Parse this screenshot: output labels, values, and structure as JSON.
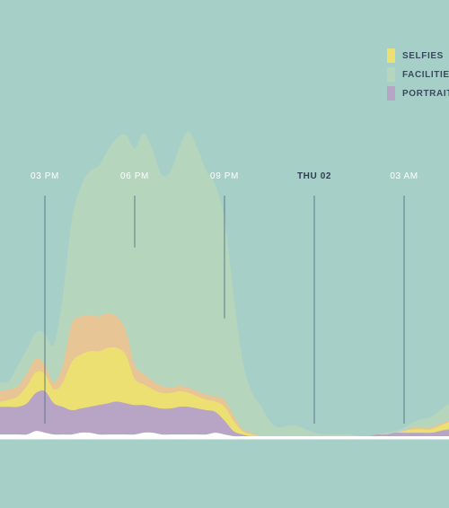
{
  "chart_data": {
    "type": "area",
    "stacked": true,
    "time_ticks": [
      "03 PM",
      "06 PM",
      "09 PM",
      "THU 02",
      "03 AM"
    ],
    "emphasized_tick": "THU 02",
    "series": [
      {
        "key": "other",
        "color": "#ffffff",
        "values": [
          1,
          1,
          1,
          1,
          3,
          2,
          1,
          1,
          1,
          2,
          2,
          1,
          1,
          1,
          1,
          1,
          2,
          2,
          1,
          1,
          1,
          1,
          1,
          1,
          2,
          1,
          0,
          0,
          0,
          0,
          0,
          0,
          0,
          0,
          0,
          0,
          0,
          0,
          0,
          0,
          0,
          0,
          0,
          0,
          0,
          0,
          0,
          0,
          0,
          0,
          0
        ]
      },
      {
        "key": "portraits",
        "name": "PORTRAITS",
        "color": "#b8a4c5",
        "values": [
          16,
          16,
          16,
          18,
          22,
          24,
          18,
          16,
          14,
          14,
          15,
          17,
          18,
          19,
          18,
          17,
          16,
          15,
          15,
          15,
          16,
          16,
          15,
          14,
          12,
          8,
          3,
          1,
          0,
          0,
          0,
          0,
          0,
          0,
          0,
          0,
          0,
          0,
          0,
          0,
          0,
          0,
          1,
          1,
          2,
          2,
          2,
          2,
          2,
          3,
          4
        ]
      },
      {
        "key": "selfies",
        "name": "SELFIES",
        "color": "#ede072",
        "values": [
          3,
          4,
          6,
          10,
          12,
          10,
          8,
          14,
          28,
          31,
          32,
          31,
          32,
          31,
          28,
          15,
          12,
          10,
          9,
          9,
          9,
          8,
          7,
          6,
          6,
          8,
          6,
          2,
          1,
          0,
          0,
          0,
          0,
          0,
          0,
          0,
          0,
          0,
          0,
          0,
          0,
          0,
          0,
          0,
          0,
          1,
          2,
          2,
          2,
          3,
          4
        ]
      },
      {
        "key": "other_orange",
        "color": "#e8c594",
        "values": [
          6,
          6,
          6,
          7,
          8,
          5,
          4,
          10,
          22,
          22,
          21,
          20,
          20,
          18,
          14,
          8,
          6,
          5,
          4,
          3,
          3,
          3,
          3,
          3,
          3,
          4,
          3,
          1,
          1,
          0,
          0,
          0,
          0,
          0,
          0,
          0,
          0,
          0,
          0,
          0,
          0,
          0,
          0,
          0,
          0,
          0,
          1,
          1,
          1,
          1,
          1
        ]
      },
      {
        "key": "facilities",
        "name": "FACILITIES",
        "color": "#b5d5bd",
        "values": [
          5,
          5,
          12,
          14,
          15,
          18,
          22,
          40,
          60,
          75,
          83,
          87,
          94,
          103,
          113,
          125,
          139,
          133,
          122,
          125,
          138,
          148,
          140,
          129,
          122,
          104,
          70,
          40,
          24,
          18,
          9,
          5,
          6,
          6,
          4,
          2,
          1,
          1,
          1,
          1,
          0,
          0,
          0,
          1,
          1,
          2,
          3,
          5,
          6,
          8,
          10
        ]
      }
    ],
    "legend": [
      {
        "name": "SELFIES",
        "color": "#ede072"
      },
      {
        "name": "FACILITIES",
        "color": "#b5d5bd"
      },
      {
        "name": "PORTRAITS",
        "color": "#b8a4c5"
      }
    ],
    "legend_position": "top-right",
    "grid": false,
    "background": "#a6d0c7",
    "tick_line_color": "#5a7a8a",
    "baseline_color": "#ffffff"
  }
}
